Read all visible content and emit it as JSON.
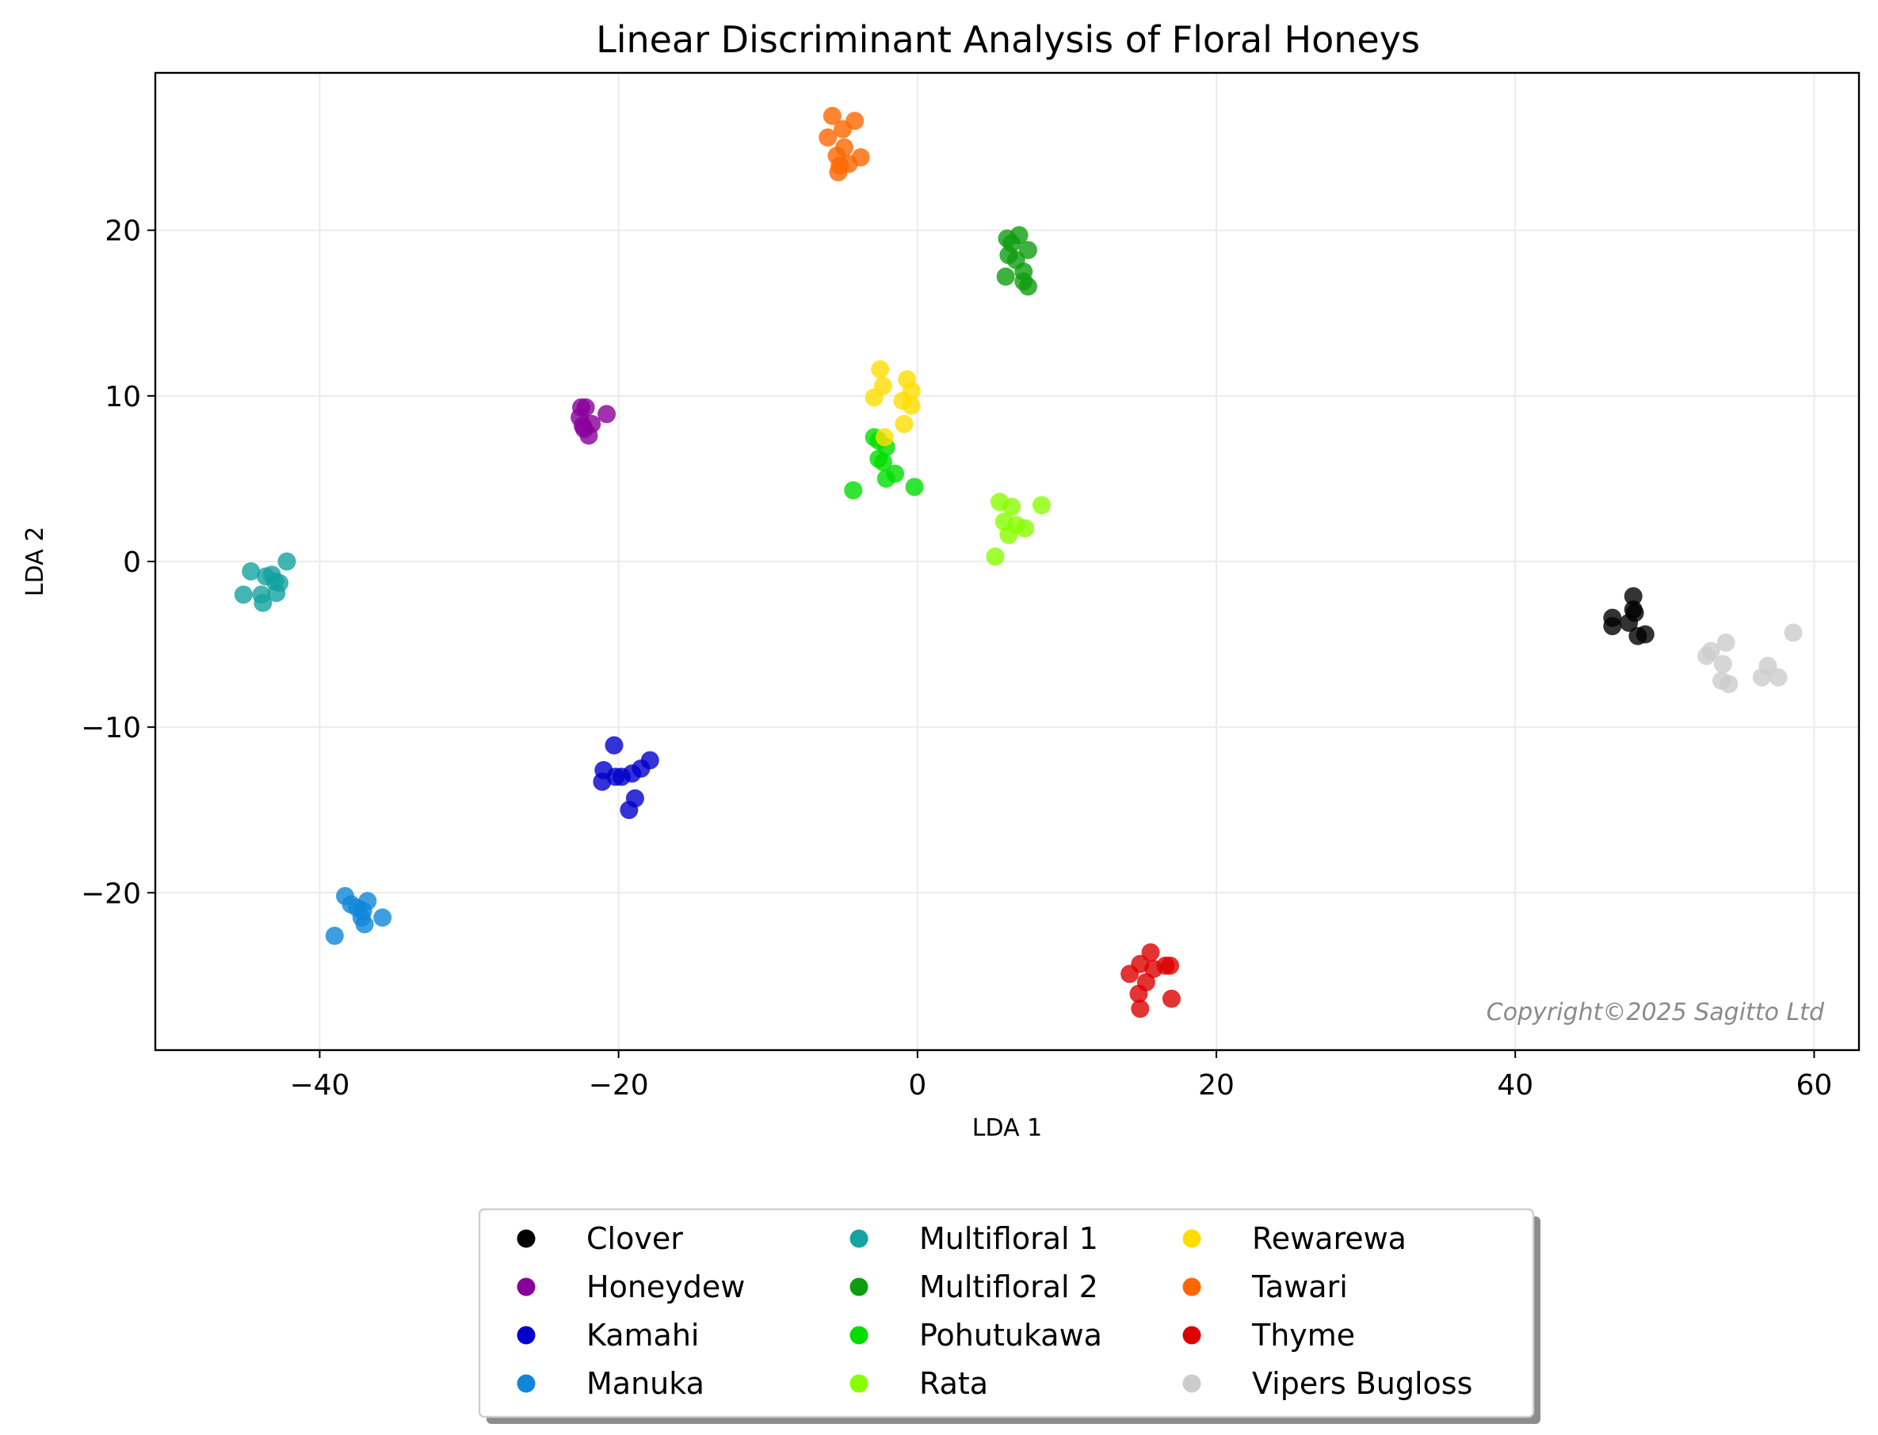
{
  "chart_data": {
    "type": "scatter",
    "title": "Linear Discriminant Analysis of Floral Honeys",
    "xlabel": "LDA 1",
    "ylabel": "LDA 2",
    "xlim": [
      -51,
      63
    ],
    "ylim": [
      -29.5,
      29.5
    ],
    "xticks": [
      -40,
      -20,
      0,
      20,
      40,
      60
    ],
    "yticks": [
      -20,
      -10,
      0,
      10,
      20
    ],
    "xtick_labels": [
      "−40",
      "−20",
      "0",
      "20",
      "40",
      "60"
    ],
    "ytick_labels": [
      "−20",
      "−10",
      "0",
      "10",
      "20"
    ],
    "grid": true,
    "legend_position": "below",
    "annotation": "Copyright©2025 Sagitto Ltd",
    "series": [
      {
        "name": "Clover",
        "color": "#000000",
        "points": [
          [
            46.5,
            -3.4
          ],
          [
            46.5,
            -3.9
          ],
          [
            47.6,
            -3.7
          ],
          [
            47.9,
            -2.1
          ],
          [
            47.9,
            -2.9
          ],
          [
            48.0,
            -3.1
          ],
          [
            48.2,
            -4.5
          ],
          [
            48.7,
            -4.4
          ]
        ]
      },
      {
        "name": "Honeydew",
        "color": "#880099",
        "points": [
          [
            -22.5,
            9.3
          ],
          [
            -22.2,
            9.3
          ],
          [
            -22.6,
            8.7
          ],
          [
            -22.4,
            8.2
          ],
          [
            -21.8,
            8.3
          ],
          [
            -22.0,
            7.6
          ],
          [
            -20.8,
            8.9
          ],
          [
            -22.3,
            8.0
          ]
        ]
      },
      {
        "name": "Kamahi",
        "color": "#0000cc",
        "points": [
          [
            -20.3,
            -11.1
          ],
          [
            -17.9,
            -12.0
          ],
          [
            -18.5,
            -12.5
          ],
          [
            -19.1,
            -12.8
          ],
          [
            -19.8,
            -13.0
          ],
          [
            -20.2,
            -13.0
          ],
          [
            -21.0,
            -12.6
          ],
          [
            -21.1,
            -13.3
          ],
          [
            -18.9,
            -14.3
          ],
          [
            -19.3,
            -15.0
          ]
        ]
      },
      {
        "name": "Manuka",
        "color": "#0f86d9",
        "points": [
          [
            -38.3,
            -20.2
          ],
          [
            -37.9,
            -20.7
          ],
          [
            -37.5,
            -20.9
          ],
          [
            -36.8,
            -20.5
          ],
          [
            -37.1,
            -21.1
          ],
          [
            -35.8,
            -21.5
          ],
          [
            -37.2,
            -21.5
          ],
          [
            -37.0,
            -21.9
          ],
          [
            -39.0,
            -22.6
          ]
        ]
      },
      {
        "name": "Multifloral 1",
        "color": "#14a3a0",
        "points": [
          [
            -42.2,
            0.0
          ],
          [
            -44.6,
            -0.6
          ],
          [
            -43.6,
            -0.9
          ],
          [
            -43.2,
            -0.8
          ],
          [
            -43.0,
            -1.2
          ],
          [
            -42.7,
            -1.3
          ],
          [
            -45.1,
            -2.0
          ],
          [
            -43.9,
            -2.0
          ],
          [
            -42.9,
            -1.9
          ],
          [
            -43.8,
            -2.5
          ]
        ]
      },
      {
        "name": "Multifloral 2",
        "color": "#0f9d0f",
        "points": [
          [
            6.0,
            19.5
          ],
          [
            6.8,
            19.7
          ],
          [
            6.3,
            19.2
          ],
          [
            7.4,
            18.8
          ],
          [
            6.1,
            18.5
          ],
          [
            6.6,
            18.2
          ],
          [
            7.1,
            17.5
          ],
          [
            5.9,
            17.2
          ],
          [
            7.1,
            16.9
          ],
          [
            7.4,
            16.6
          ]
        ]
      },
      {
        "name": "Pohutukawa",
        "color": "#00dd00",
        "points": [
          [
            -2.9,
            7.5
          ],
          [
            -2.6,
            7.3
          ],
          [
            -2.1,
            6.9
          ],
          [
            -2.6,
            6.2
          ],
          [
            -2.3,
            6.0
          ],
          [
            -1.5,
            5.3
          ],
          [
            -2.1,
            5.0
          ],
          [
            -4.3,
            4.3
          ],
          [
            -0.2,
            4.5
          ]
        ]
      },
      {
        "name": "Rata",
        "color": "#88ff00",
        "points": [
          [
            5.5,
            3.6
          ],
          [
            6.3,
            3.3
          ],
          [
            8.3,
            3.4
          ],
          [
            5.8,
            2.4
          ],
          [
            6.6,
            2.2
          ],
          [
            7.2,
            2.0
          ],
          [
            6.1,
            1.6
          ],
          [
            5.2,
            0.3
          ]
        ]
      },
      {
        "name": "Rewarewa",
        "color": "#ffdd00",
        "points": [
          [
            -2.5,
            11.6
          ],
          [
            -0.7,
            11.0
          ],
          [
            -2.3,
            10.6
          ],
          [
            -0.4,
            10.3
          ],
          [
            -2.9,
            9.9
          ],
          [
            -1.0,
            9.7
          ],
          [
            -0.4,
            9.4
          ],
          [
            -0.9,
            8.3
          ],
          [
            -2.2,
            7.5
          ]
        ]
      },
      {
        "name": "Tawari",
        "color": "#ff6600",
        "points": [
          [
            -5.7,
            26.9
          ],
          [
            -4.2,
            26.6
          ],
          [
            -5.0,
            26.1
          ],
          [
            -6.0,
            25.6
          ],
          [
            -4.9,
            25.0
          ],
          [
            -5.4,
            24.5
          ],
          [
            -3.8,
            24.4
          ],
          [
            -4.6,
            24.0
          ],
          [
            -5.2,
            23.9
          ],
          [
            -5.3,
            23.5
          ]
        ]
      },
      {
        "name": "Thyme",
        "color": "#dd0000",
        "points": [
          [
            15.6,
            -23.6
          ],
          [
            14.9,
            -24.3
          ],
          [
            16.6,
            -24.4
          ],
          [
            16.9,
            -24.4
          ],
          [
            15.8,
            -24.6
          ],
          [
            14.2,
            -24.9
          ],
          [
            15.3,
            -25.4
          ],
          [
            14.8,
            -26.1
          ],
          [
            17.0,
            -26.4
          ],
          [
            14.9,
            -27.0
          ]
        ]
      },
      {
        "name": "Vipers Bugloss",
        "color": "#cccccc",
        "points": [
          [
            58.6,
            -4.3
          ],
          [
            54.1,
            -4.9
          ],
          [
            53.1,
            -5.4
          ],
          [
            52.8,
            -5.7
          ],
          [
            53.9,
            -6.2
          ],
          [
            56.9,
            -6.3
          ],
          [
            56.5,
            -7.0
          ],
          [
            57.6,
            -7.0
          ],
          [
            53.8,
            -7.2
          ],
          [
            54.3,
            -7.4
          ]
        ]
      }
    ]
  }
}
